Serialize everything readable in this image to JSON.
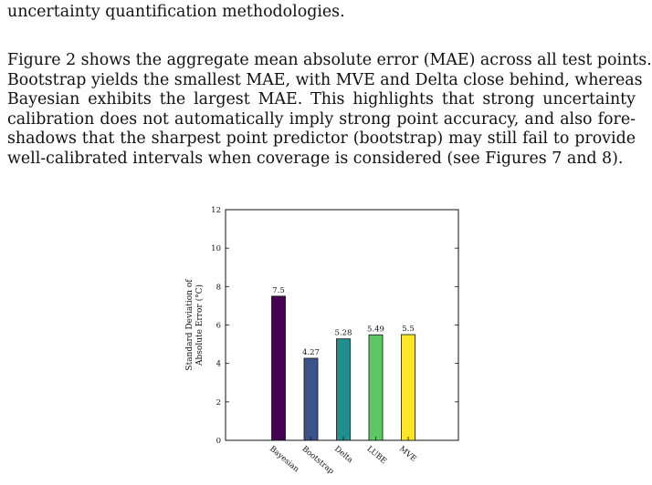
{
  "text": {
    "paragraph_1_lines": [
      "uncertainty quantification methodologies."
    ],
    "paragraph_2_lines": [
      "Figure 2 shows the aggregate mean absolute error (MAE) across all test points.",
      "Bootstrap yields the smallest MAE, with MVE and Delta close behind, whereas",
      "Bayesian exhibits the largest MAE. This highlights that strong uncertainty",
      "calibration does not automatically imply strong point accuracy, and also fore-",
      "shadows that the sharpest point predictor (bootstrap) may still fail to provide",
      "well-calibrated intervals when coverage is considered (see Figures 7 and 8)."
    ]
  },
  "chart_data": {
    "type": "bar",
    "title": "",
    "xlabel": "",
    "ylabel_lines": [
      "Standard Deviation of",
      "Absolute Error (°C)"
    ],
    "ylim": [
      0,
      12
    ],
    "yticks": [
      0,
      2,
      4,
      6,
      8,
      10,
      12
    ],
    "categories": [
      "Bayesian",
      "Bootstrap",
      "Delta",
      "LUBE",
      "MVE"
    ],
    "values": [
      7.5,
      4.27,
      5.28,
      5.49,
      5.5
    ],
    "data_labels": [
      "7.5",
      "4.27",
      "5.28",
      "5.49",
      "5.5"
    ],
    "colors": [
      "#440154",
      "#3b528b",
      "#21908d",
      "#5dc863",
      "#fde725"
    ],
    "grid": false,
    "legend": "none"
  }
}
